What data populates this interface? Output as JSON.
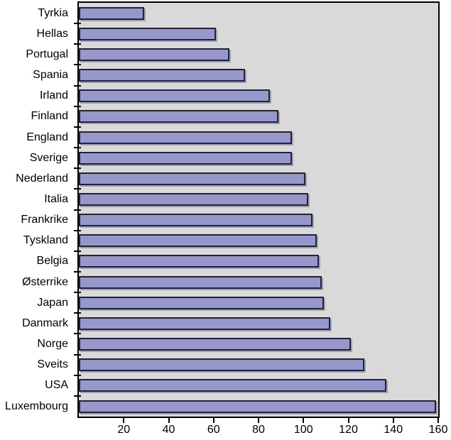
{
  "chart_data": {
    "type": "bar",
    "orientation": "horizontal",
    "categories": [
      "Tyrkia",
      "Hellas",
      "Portugal",
      "Spania",
      "Irland",
      "Finland",
      "England",
      "Sverige",
      "Nederland",
      "Italia",
      "Frankrike",
      "Tyskland",
      "Belgia",
      "Østerrike",
      "Japan",
      "Danmark",
      "Norge",
      "Sveits",
      "USA",
      "Luxembourg"
    ],
    "values": [
      29,
      61,
      67,
      74,
      85,
      89,
      95,
      95,
      101,
      102,
      104,
      106,
      107,
      108,
      109,
      112,
      121,
      127,
      137,
      159
    ],
    "xlim": [
      0,
      160
    ],
    "xticks": [
      20,
      40,
      60,
      80,
      100,
      120,
      140,
      160
    ],
    "grid": false,
    "legend": false,
    "colors": {
      "bar_fill": "#9697CA",
      "bar_border": "#20203F",
      "plot_background": "#D9D9D9",
      "axis": "#000000",
      "page_background": "#FFFFFF",
      "text": "#000000"
    }
  }
}
